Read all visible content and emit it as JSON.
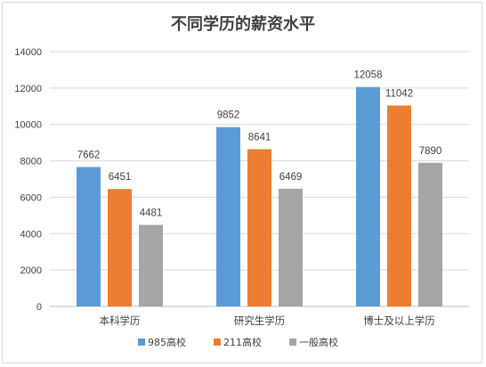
{
  "chart_data": {
    "type": "bar",
    "title": "不同学历的薪资水平",
    "xlabel": "",
    "ylabel": "",
    "categories": [
      "本科学历",
      "研究生学历",
      "博士及以上学历"
    ],
    "series": [
      {
        "name": "985高校",
        "values": [
          7662,
          9852,
          12058
        ],
        "color": "#5b9bd5"
      },
      {
        "name": "211高校",
        "values": [
          6451,
          8641,
          11042
        ],
        "color": "#ed7d31"
      },
      {
        "name": "一般高校",
        "values": [
          4481,
          6469,
          7890
        ],
        "color": "#a5a5a5"
      }
    ],
    "ylim": [
      0,
      14000
    ],
    "yticks": [
      0,
      2000,
      4000,
      6000,
      8000,
      10000,
      12000,
      14000
    ],
    "grid": true,
    "legend": "bottom",
    "data_labels": true
  }
}
